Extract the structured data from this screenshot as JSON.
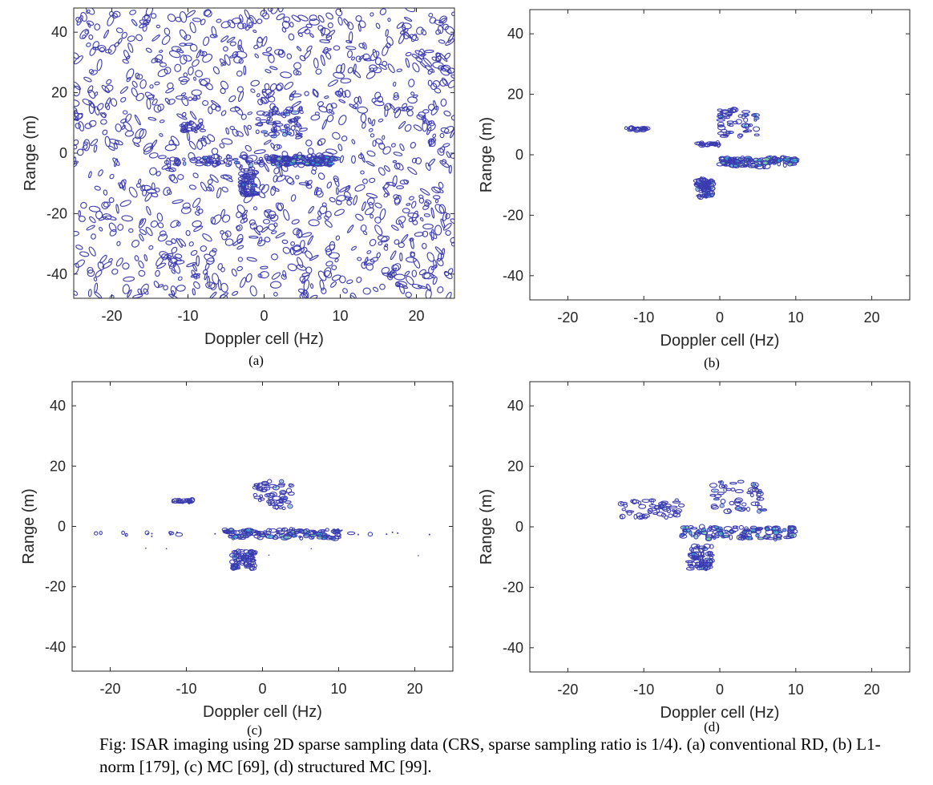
{
  "caption": "Fig: ISAR imaging using 2D sparse sampling data (CRS, sparse sampling ratio is 1/4). (a) conventional RD, (b) L1-norm [179], (c) MC [69], (d) structured MC [99].",
  "colors": {
    "contour": "#3b3bb0",
    "contour_hot": "#2aa7c9",
    "contour_peak": "#7fd6a0",
    "axis": "#262626"
  },
  "chart_data": [
    {
      "type": "scatter",
      "panel_label": "(a)",
      "method": "conventional RD",
      "xlabel": "Doppler cell (Hz)",
      "ylabel": "Range (m)",
      "xlim": [
        -25,
        25
      ],
      "ylim": [
        -48,
        48
      ],
      "xticks": [
        -20,
        -10,
        0,
        10,
        20
      ],
      "yticks": [
        -40,
        -20,
        0,
        20,
        40
      ],
      "noise_floor": "dense",
      "target_clusters": [
        {
          "x": [
            -13,
            10
          ],
          "y": [
            -4,
            -1
          ],
          "density": "high"
        },
        {
          "x": [
            1,
            9
          ],
          "y": [
            -4,
            -1
          ],
          "density": "peak"
        },
        {
          "x": [
            -3,
            -1
          ],
          "y": [
            -14,
            -5
          ],
          "density": "high"
        },
        {
          "x": [
            -1,
            5
          ],
          "y": [
            5,
            15
          ],
          "density": "medium"
        },
        {
          "x": [
            -11,
            -8
          ],
          "y": [
            7,
            10
          ],
          "density": "low"
        }
      ]
    },
    {
      "type": "scatter",
      "panel_label": "(b)",
      "method": "L1-norm [179]",
      "xlabel": "Doppler cell (Hz)",
      "ylabel": "Range (m)",
      "xlim": [
        -25,
        25
      ],
      "ylim": [
        -48,
        48
      ],
      "xticks": [
        -20,
        -10,
        0,
        10,
        20
      ],
      "yticks": [
        -40,
        -20,
        0,
        20,
        40
      ],
      "noise_floor": "none",
      "target_clusters": [
        {
          "x": [
            -12.5,
            -9.5
          ],
          "y": [
            8,
            9
          ],
          "density": "low"
        },
        {
          "x": [
            -3,
            0
          ],
          "y": [
            3,
            4
          ],
          "density": "low"
        },
        {
          "x": [
            0,
            10
          ],
          "y": [
            -4,
            -1
          ],
          "density": "peak"
        },
        {
          "x": [
            -3,
            -1
          ],
          "y": [
            -14,
            -8
          ],
          "density": "high"
        },
        {
          "x": [
            0,
            5
          ],
          "y": [
            6,
            15
          ],
          "density": "medium"
        }
      ]
    },
    {
      "type": "scatter",
      "panel_label": "(c)",
      "method": "MC [69]",
      "xlabel": "Doppler cell (Hz)",
      "ylabel": "Range (m)",
      "xlim": [
        -25,
        25
      ],
      "ylim": [
        -48,
        48
      ],
      "xticks": [
        -20,
        -10,
        0,
        10,
        20
      ],
      "yticks": [
        -40,
        -20,
        0,
        20,
        40
      ],
      "noise_floor": "sparse-streak",
      "target_clusters": [
        {
          "x": [
            -12,
            -9
          ],
          "y": [
            8,
            9
          ],
          "density": "low"
        },
        {
          "x": [
            -5,
            10
          ],
          "y": [
            -4,
            -1
          ],
          "density": "peak"
        },
        {
          "x": [
            -4,
            -1
          ],
          "y": [
            -14,
            -8
          ],
          "density": "high"
        },
        {
          "x": [
            -1,
            4
          ],
          "y": [
            6,
            15
          ],
          "density": "medium"
        },
        {
          "x": [
            -22,
            23
          ],
          "y": [
            -3,
            -2
          ],
          "density": "sparse"
        }
      ]
    },
    {
      "type": "scatter",
      "panel_label": "(d)",
      "method": "structured MC [99]",
      "xlabel": "Doppler cell (Hz)",
      "ylabel": "Range (m)",
      "xlim": [
        -25,
        25
      ],
      "ylim": [
        -48,
        48
      ],
      "xticks": [
        -20,
        -10,
        0,
        10,
        20
      ],
      "yticks": [
        -40,
        -20,
        0,
        20,
        40
      ],
      "noise_floor": "none",
      "target_clusters": [
        {
          "x": [
            -13,
            -5
          ],
          "y": [
            3,
            9
          ],
          "density": "medium"
        },
        {
          "x": [
            -5,
            10
          ],
          "y": [
            -4,
            0
          ],
          "density": "peak"
        },
        {
          "x": [
            -4,
            -1
          ],
          "y": [
            -14,
            -6
          ],
          "density": "high"
        },
        {
          "x": [
            -1,
            6
          ],
          "y": [
            5,
            15
          ],
          "density": "medium"
        }
      ]
    }
  ]
}
